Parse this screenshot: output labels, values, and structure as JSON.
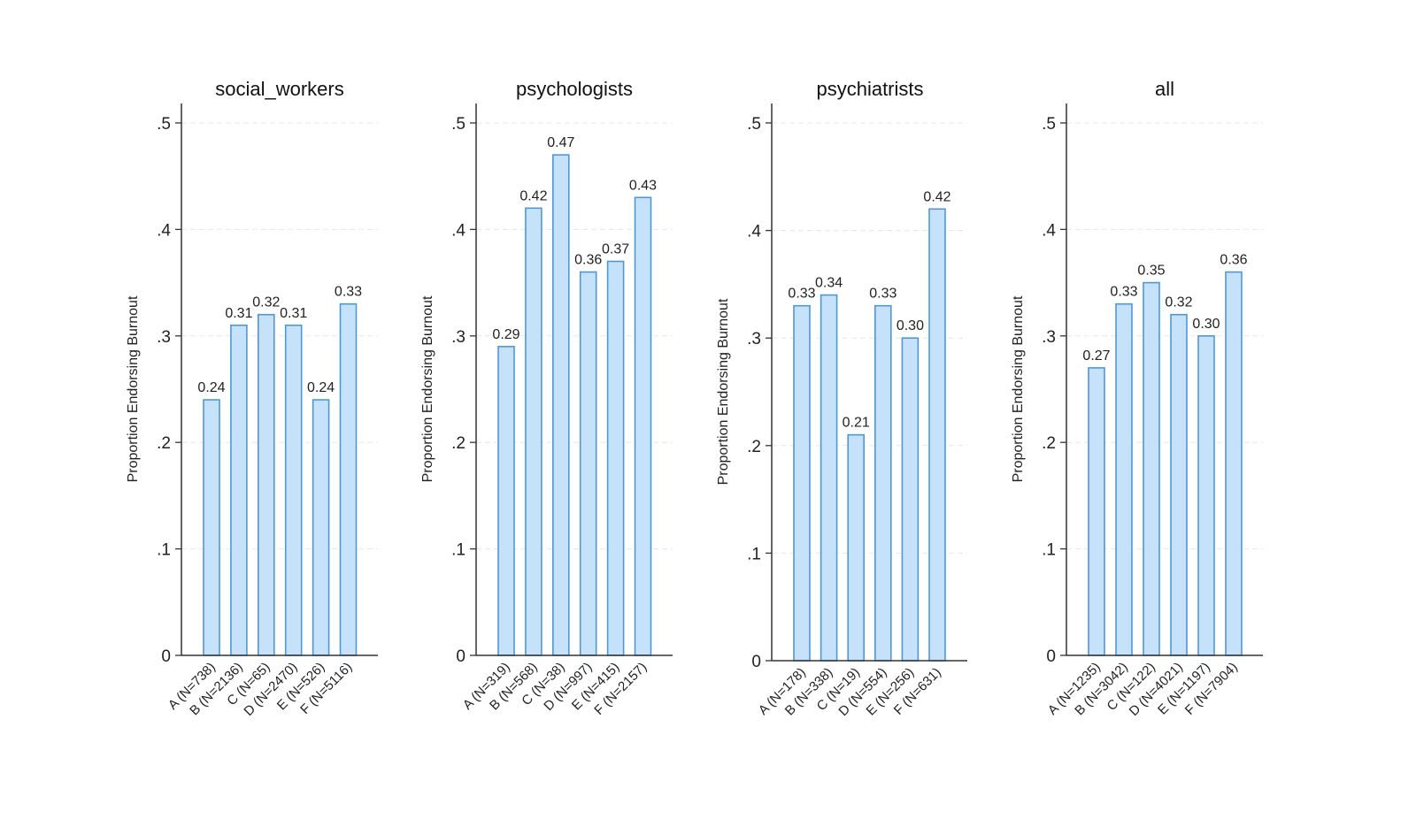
{
  "chart_data": [
    {
      "type": "bar",
      "title": "social_workers",
      "ylabel": "Proportion Endorsing Burnout",
      "xlabel": "",
      "ylim": [
        0,
        0.5
      ],
      "yticks": [
        0,
        0.1,
        0.2,
        0.3,
        0.4,
        0.5
      ],
      "ytick_labels": [
        "0",
        ".1",
        ".2",
        ".3",
        ".4",
        ".5"
      ],
      "grid": true,
      "categories": [
        "A (N=738)",
        "B (N=2136)",
        "C (N=65)",
        "D (N=2470)",
        "E (N=526)",
        "F (N=5116)"
      ],
      "values": [
        0.24,
        0.31,
        0.32,
        0.31,
        0.24,
        0.33
      ],
      "value_labels": [
        "0.24",
        "0.31",
        "0.32",
        "0.31",
        "0.24",
        "0.33"
      ]
    },
    {
      "type": "bar",
      "title": "psychologists",
      "ylabel": "Proportion Endorsing Burnout",
      "xlabel": "",
      "ylim": [
        0,
        0.5
      ],
      "yticks": [
        0,
        0.1,
        0.2,
        0.3,
        0.4,
        0.5
      ],
      "ytick_labels": [
        "0",
        ".1",
        ".2",
        ".3",
        ".4",
        ".5"
      ],
      "grid": true,
      "categories": [
        "A (N=319)",
        "B (N=568)",
        "C (N=38)",
        "D (N=997)",
        "E (N=415)",
        "F (N=2157)"
      ],
      "values": [
        0.29,
        0.42,
        0.47,
        0.36,
        0.37,
        0.43
      ],
      "value_labels": [
        "0.29",
        "0.42",
        "0.47",
        "0.36",
        "0.37",
        "0.43"
      ]
    },
    {
      "type": "bar",
      "title": "psychiatrists",
      "ylabel": "Proportion Endorsing Burnout",
      "xlabel": "",
      "ylim": [
        0,
        0.5
      ],
      "yticks": [
        0,
        0.1,
        0.2,
        0.3,
        0.4,
        0.5
      ],
      "ytick_labels": [
        "0",
        ".1",
        ".2",
        ".3",
        ".4",
        ".5"
      ],
      "grid": true,
      "categories": [
        "A (N=178)",
        "B (N=338)",
        "C (N=19)",
        "D (N=554)",
        "E (N=256)",
        "F (N=631)"
      ],
      "values": [
        0.33,
        0.34,
        0.21,
        0.33,
        0.3,
        0.42
      ],
      "value_labels": [
        "0.33",
        "0.34",
        "0.21",
        "0.33",
        "0.30",
        "0.42"
      ]
    },
    {
      "type": "bar",
      "title": "all",
      "ylabel": "Proportion Endorsing Burnout",
      "xlabel": "",
      "ylim": [
        0,
        0.5
      ],
      "yticks": [
        0,
        0.1,
        0.2,
        0.3,
        0.4,
        0.5
      ],
      "ytick_labels": [
        "0",
        ".1",
        ".2",
        ".3",
        ".4",
        ".5"
      ],
      "grid": true,
      "categories": [
        "A (N=1235)",
        "B (N=3042)",
        "C (N=122)",
        "D (N=4021)",
        "E (N=1197)",
        "F (N=7904)"
      ],
      "values": [
        0.27,
        0.33,
        0.35,
        0.32,
        0.3,
        0.36
      ],
      "value_labels": [
        "0.27",
        "0.33",
        "0.35",
        "0.32",
        "0.30",
        "0.36"
      ]
    }
  ],
  "colors": {
    "bar_fill": "#c6e2fb",
    "bar_stroke": "#4f98d8",
    "axis": "#333333",
    "grid": "#e7e7e7",
    "text": "#222222"
  }
}
